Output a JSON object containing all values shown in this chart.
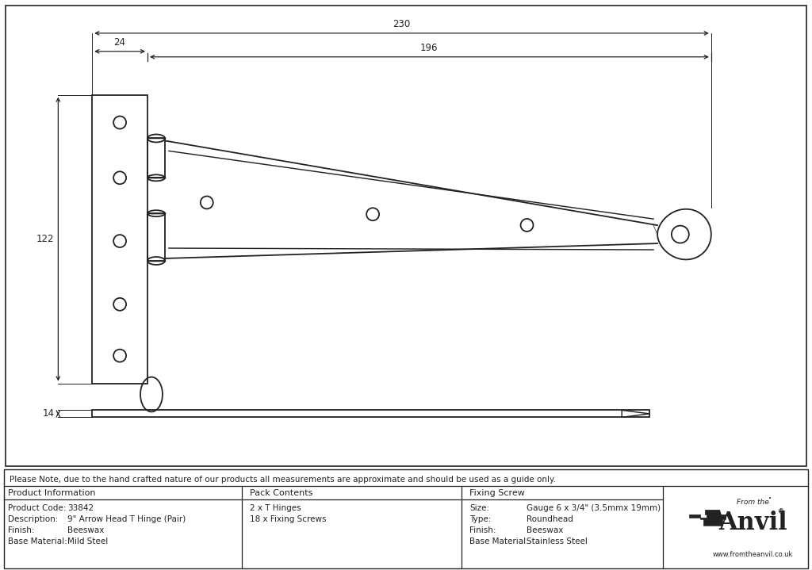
{
  "bg_color": "#ffffff",
  "line_color": "#222222",
  "note_text": "Please Note, due to the hand crafted nature of our products all measurements are approximate and should be used as a guide only.",
  "product_info": {
    "header": "Product Information",
    "rows": [
      [
        "Product Code:",
        "33842"
      ],
      [
        "Description:",
        "9\" Arrow Head T Hinge (Pair)"
      ],
      [
        "Finish:",
        "Beeswax"
      ],
      [
        "Base Material:",
        "Mild Steel"
      ]
    ]
  },
  "pack_contents": {
    "header": "Pack Contents",
    "rows": [
      [
        "2 x T Hinges"
      ],
      [
        "18 x Fixing Screws"
      ]
    ]
  },
  "fixing_screw": {
    "header": "Fixing Screw",
    "rows": [
      [
        "Size:",
        "Gauge 6 x 3/4\" (3.5mmx 19mm)"
      ],
      [
        "Type:",
        "Roundhead"
      ],
      [
        "Finish:",
        "Beeswax"
      ],
      [
        "Base Material:",
        "Stainless Steel"
      ]
    ]
  },
  "dim_230": "230",
  "dim_196": "196",
  "dim_24": "24",
  "dim_122": "122",
  "dim_14": "14"
}
